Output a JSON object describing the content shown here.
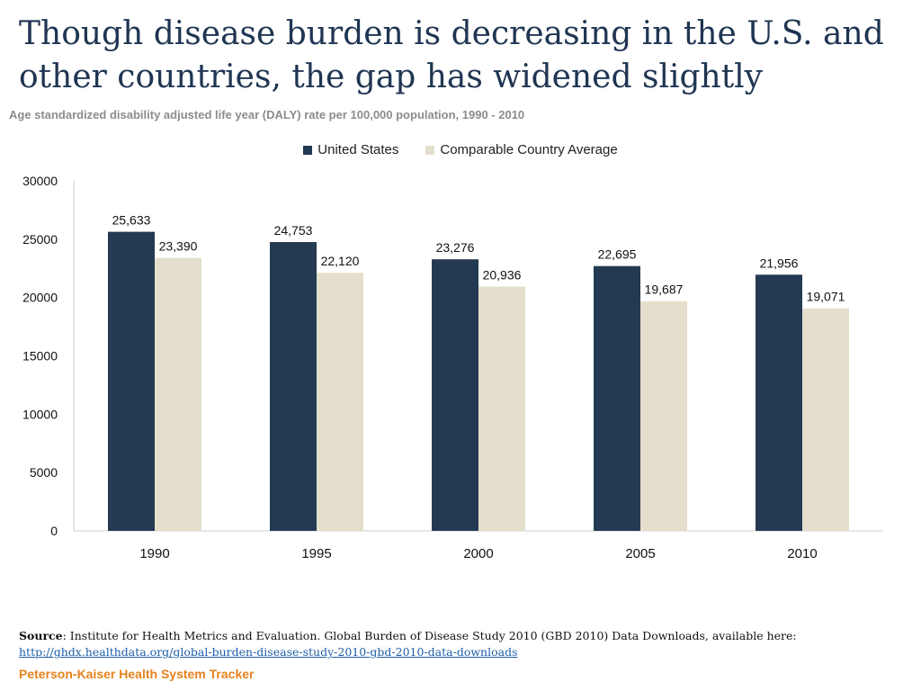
{
  "header": {
    "title": "Though disease burden is decreasing in the U.S. and other countries, the gap has widened slightly",
    "subtitle": "Age standardized disability adjusted life year (DALY) rate per 100,000 population, 1990 - 2010"
  },
  "colors": {
    "united_states": "#243a52",
    "comparable_average": "#e4dfcc",
    "axis": "#cfcfcf",
    "brand": "#e6821e"
  },
  "chart_data": {
    "type": "bar",
    "title": "Though disease burden is decreasing in the U.S. and other countries, the gap has widened slightly",
    "subtitle": "Age standardized disability adjusted life year (DALY) rate per 100,000 population, 1990 - 2010",
    "categories": [
      "1990",
      "1995",
      "2000",
      "2005",
      "2010"
    ],
    "series": [
      {
        "name": "United States",
        "values": [
          25633,
          24753,
          23276,
          22695,
          21956
        ],
        "labels": [
          "25,633",
          "24,753",
          "23,276",
          "22,695",
          "21,956"
        ]
      },
      {
        "name": "Comparable Country Average",
        "values": [
          23390,
          22120,
          20936,
          19687,
          19071
        ],
        "labels": [
          "23,390",
          "22,120",
          "20,936",
          "19,687",
          "19,071"
        ]
      }
    ],
    "ylim": [
      0,
      30000
    ],
    "yticks": [
      "0",
      "5000",
      "10000",
      "15000",
      "20000",
      "25000",
      "30000"
    ],
    "xlabel": "",
    "ylabel": "",
    "legend": "top-center",
    "grid": false
  },
  "footer": {
    "source_label": "Source",
    "source_text": ": Institute for Health Metrics and Evaluation. Global Burden of Disease Study 2010 (GBD 2010) Data Downloads, available here:",
    "source_link": "http://ghdx.healthdata.org/global-burden-disease-study-2010-gbd-2010-data-downloads",
    "brand": "Peterson-Kaiser Health System Tracker"
  }
}
